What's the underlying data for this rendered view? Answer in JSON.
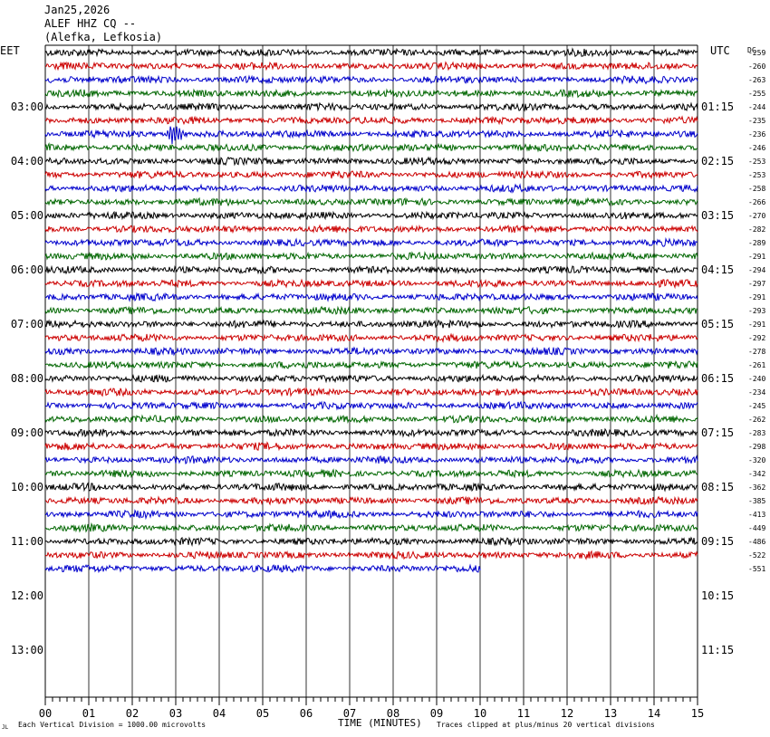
{
  "header": {
    "date": "Jan25,2026",
    "station": "ALEF HHZ CQ --",
    "location": "(Alefka, Lefkosia)"
  },
  "left_label": "EET",
  "right_label": "UTC",
  "dc_label": "DC",
  "footer": {
    "left_note": "Each Vertical Division = 1000.00 microvolts",
    "xlabel": "TIME (MINUTES)",
    "right_note": "Traces clipped at plus/minus 20 vertical divisions",
    "corner_mark": "JL"
  },
  "colors": {
    "trace_cycle": [
      "#000000",
      "#cc0000",
      "#0000cc",
      "#006600"
    ],
    "grid": "#000000"
  },
  "chart_data": {
    "type": "line",
    "xlabel": "TIME (MINUTES)",
    "x_ticks": [
      "00",
      "01",
      "02",
      "03",
      "04",
      "05",
      "06",
      "07",
      "08",
      "09",
      "10",
      "11",
      "12",
      "13",
      "14",
      "15"
    ],
    "xlim": [
      0,
      15
    ],
    "minutes_per_line": 15,
    "left_hour_labels": [
      "03:00",
      "04:00",
      "05:00",
      "06:00",
      "07:00",
      "08:00",
      "09:00",
      "10:00",
      "11:00",
      "12:00",
      "13:00"
    ],
    "right_hour_labels": [
      "01:15",
      "02:15",
      "03:15",
      "04:15",
      "05:15",
      "06:15",
      "07:15",
      "08:15",
      "09:15",
      "10:15",
      "11:15"
    ],
    "total_rows": 48,
    "dc_offsets": [
      -259,
      -260,
      -263,
      -255,
      -244,
      -235,
      -236,
      -246,
      -253,
      -253,
      -258,
      -266,
      -270,
      -282,
      -289,
      -291,
      -294,
      -297,
      -291,
      -293,
      -291,
      -292,
      -278,
      -261,
      -240,
      -234,
      -245,
      -262,
      -283,
      -298,
      -320,
      -342,
      -362,
      -385,
      -413,
      -449,
      -486,
      -522,
      -551
    ],
    "last_trace_end_minute": 10.0,
    "events": [
      {
        "trace_index": 6,
        "minute": 2.9,
        "label": ""
      }
    ]
  }
}
